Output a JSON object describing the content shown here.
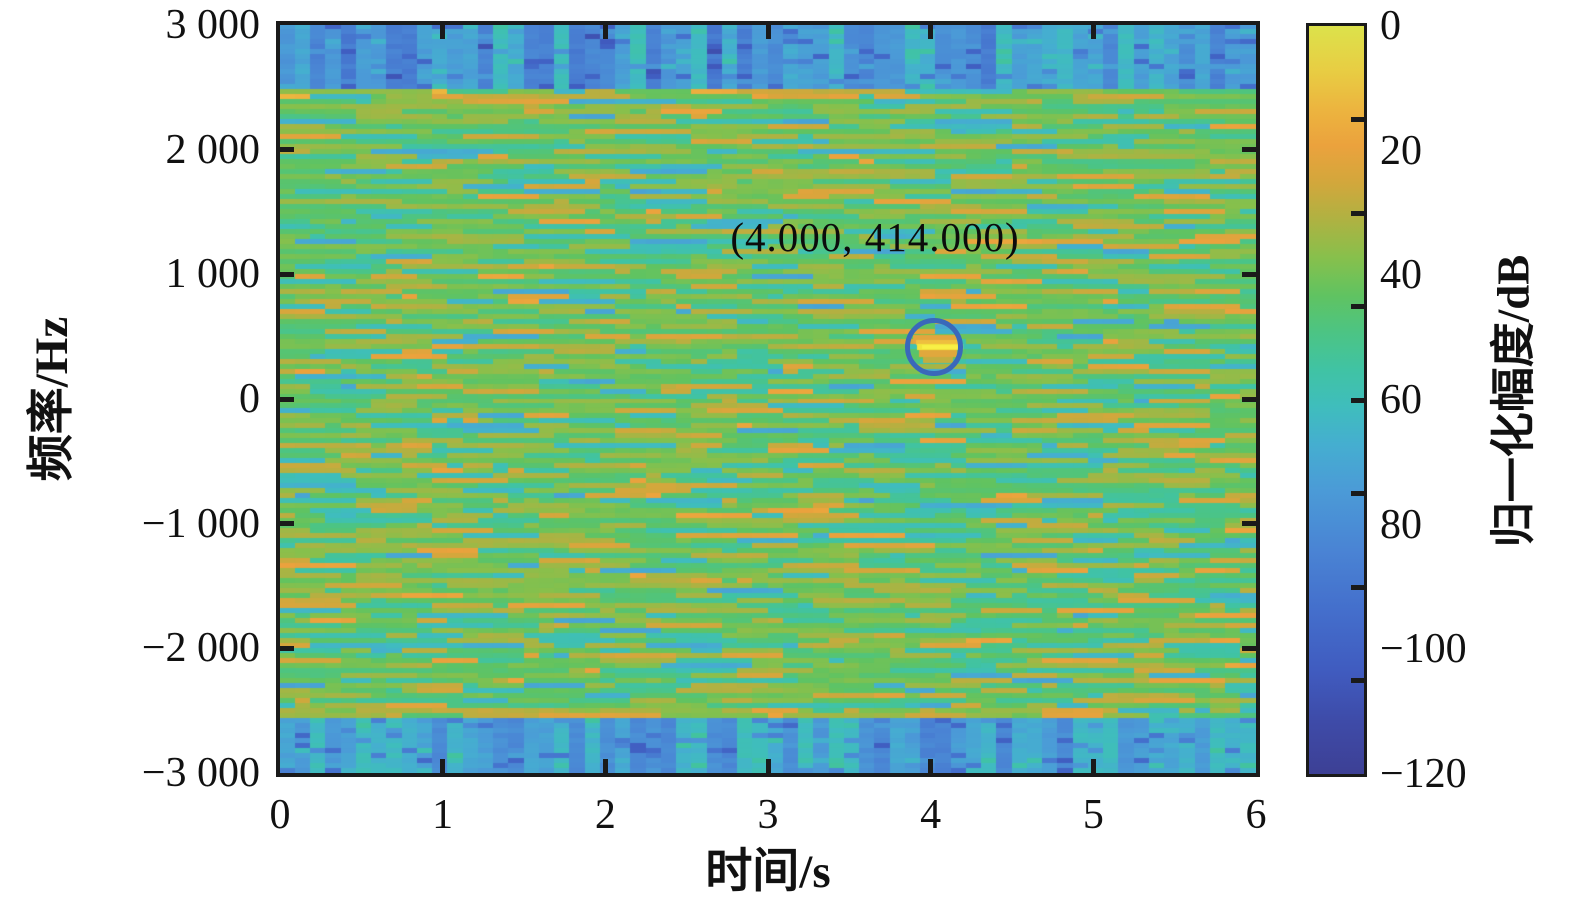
{
  "figure": {
    "x_axis": {
      "label": "时间/s",
      "ticks": [
        "0",
        "1",
        "2",
        "3",
        "4",
        "5",
        "6"
      ]
    },
    "y_axis": {
      "label": "频率/Hz",
      "ticks": [
        "3 000",
        "2 000",
        "1 000",
        "0",
        "−1 000",
        "−2 000",
        "−3 000"
      ]
    },
    "colorbar": {
      "label": "归一化幅度/dB",
      "ticks": [
        "0",
        "20",
        "40",
        "60",
        "80",
        "−100",
        "−120"
      ]
    },
    "annotation": {
      "text": "(4.000, 414.000)"
    }
  },
  "chart_data": {
    "type": "heatmap",
    "title": "",
    "xlabel": "时间/s",
    "ylabel": "频率/Hz",
    "xlim": [
      0,
      6
    ],
    "ylim": [
      -3000,
      3000
    ],
    "x_ticks": [
      0,
      1,
      2,
      3,
      4,
      5,
      6
    ],
    "y_ticks": [
      3000,
      2000,
      1000,
      0,
      -1000,
      -2000,
      -3000
    ],
    "grid": false,
    "colorbar": {
      "label": "归一化幅度/dB",
      "tick_labels": [
        "0",
        "20",
        "40",
        "60",
        "80",
        "−100",
        "−120"
      ],
      "range_dB": [
        0,
        -120
      ],
      "position": "right",
      "gradient_top_to_bottom": [
        {
          "pos": 0.0,
          "color": "#dce24b"
        },
        {
          "pos": 0.06,
          "color": "#e8cd43"
        },
        {
          "pos": 0.11,
          "color": "#ecb53f"
        },
        {
          "pos": 0.16,
          "color": "#eba23d"
        },
        {
          "pos": 0.21,
          "color": "#d2a73c"
        },
        {
          "pos": 0.26,
          "color": "#aeb242"
        },
        {
          "pos": 0.31,
          "color": "#87c04c"
        },
        {
          "pos": 0.36,
          "color": "#60c361"
        },
        {
          "pos": 0.41,
          "color": "#4cc484"
        },
        {
          "pos": 0.46,
          "color": "#40c3a4"
        },
        {
          "pos": 0.51,
          "color": "#3fbdbd"
        },
        {
          "pos": 0.56,
          "color": "#45aed0"
        },
        {
          "pos": 0.62,
          "color": "#4b9bd7"
        },
        {
          "pos": 0.7,
          "color": "#4a84d4"
        },
        {
          "pos": 0.78,
          "color": "#446fcc"
        },
        {
          "pos": 0.86,
          "color": "#405cc0"
        },
        {
          "pos": 0.93,
          "color": "#3e4ba8"
        },
        {
          "pos": 1.0,
          "color": "#3d4095"
        }
      ]
    },
    "annotation": {
      "text": "(4.000, 414.000)",
      "point": {
        "time_s": 4.0,
        "frequency_Hz": 414.0
      },
      "marker": "blue-circle-outline",
      "marker_color": "#3a68ba"
    },
    "regions": [
      {
        "band": "upper-out-of-band",
        "freq_range_Hz": [
          2480,
          3000
        ],
        "appearance": "blue vertical noise columns"
      },
      {
        "band": "passband-noise",
        "freq_range_Hz": [
          -2540,
          2480
        ],
        "appearance": "green noisy texture with olive, orange and teal horizontal streaks"
      },
      {
        "band": "lower-out-of-band",
        "freq_range_Hz": [
          -3000,
          -2540
        ],
        "appearance": "blue vertical noise columns"
      },
      {
        "feature": "signal-peak",
        "time_s": 4.0,
        "frequency_Hz": 414,
        "appearance": "bright yellow-orange horizontal streak",
        "colors": [
          "#f2e53c",
          "#e2a63e"
        ]
      }
    ]
  }
}
